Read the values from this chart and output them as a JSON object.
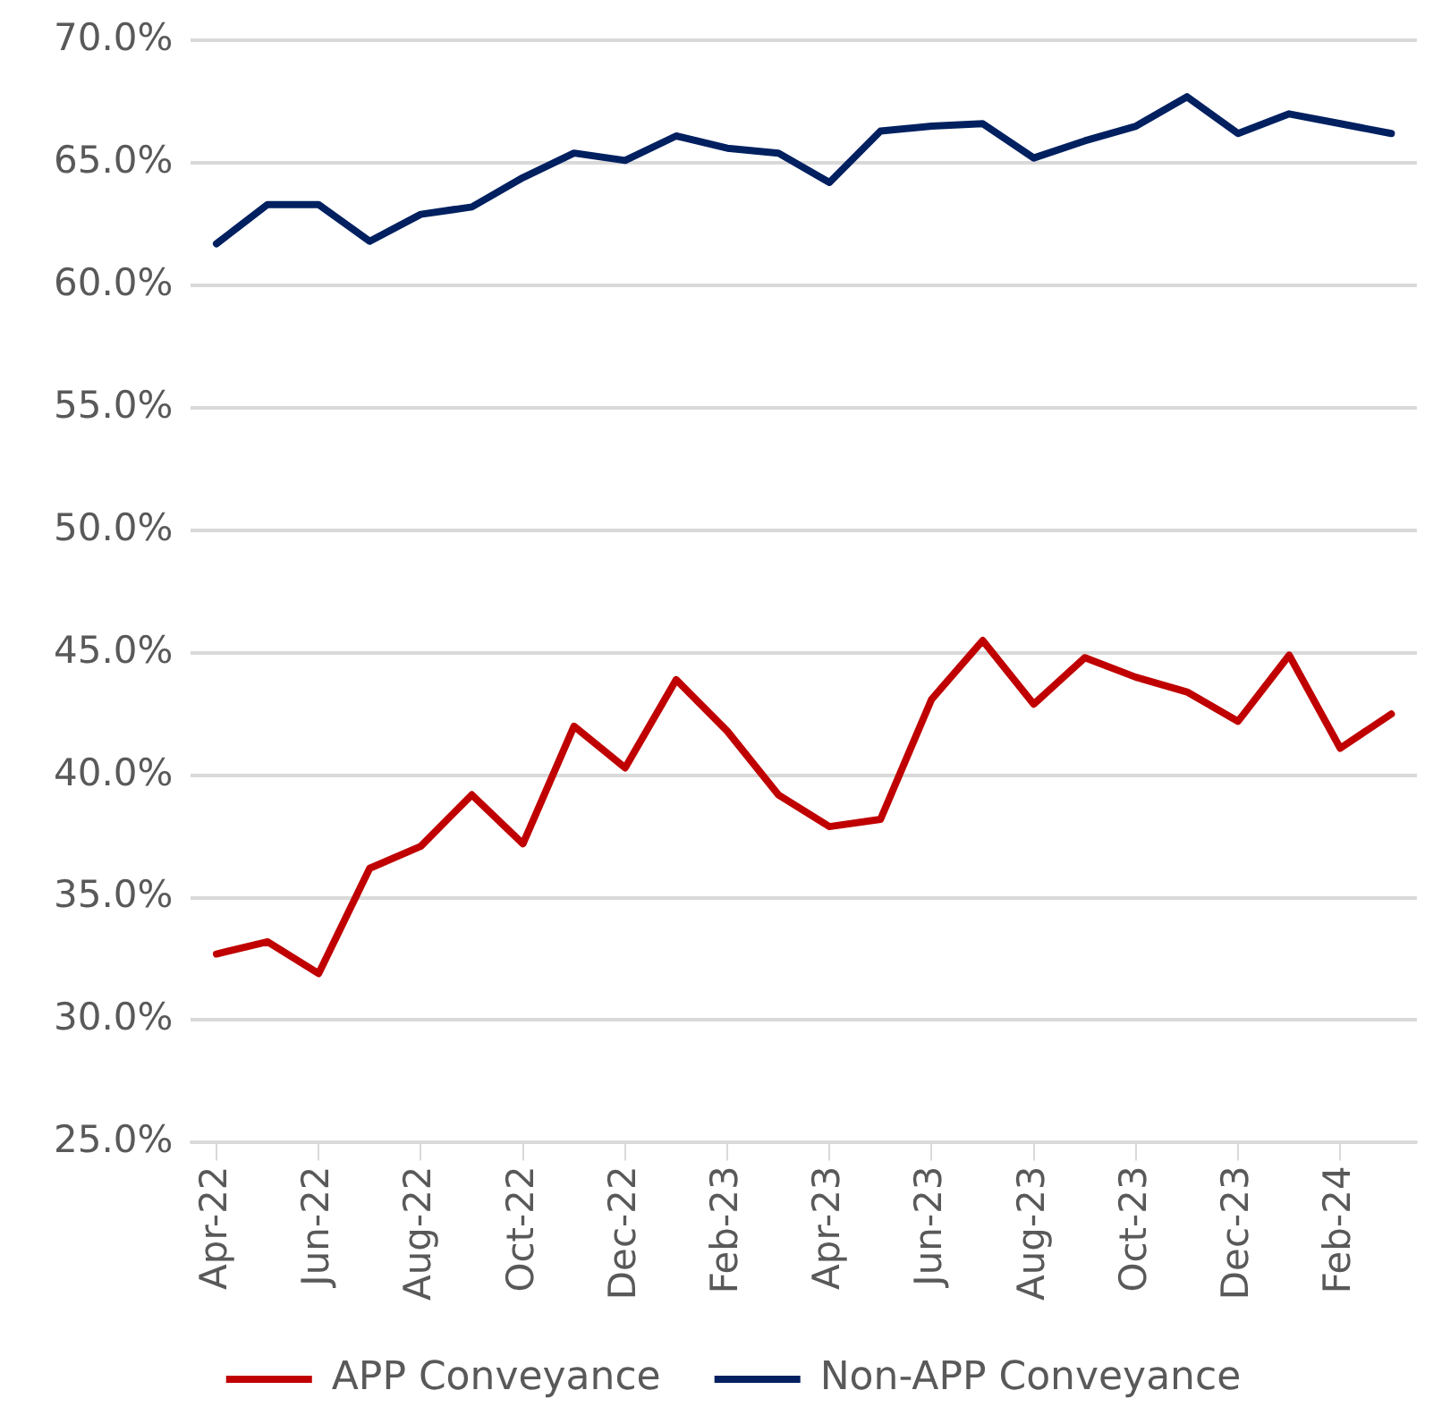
{
  "chart_data": {
    "type": "line",
    "categories": [
      "Apr-22",
      null,
      "Jun-22",
      null,
      "Aug-22",
      null,
      "Oct-22",
      null,
      "Dec-22",
      null,
      "Feb-23",
      null,
      "Apr-23",
      null,
      "Jun-23",
      null,
      "Aug-23",
      null,
      "Oct-23",
      null,
      "Dec-23",
      null,
      "Feb-24",
      null
    ],
    "series": [
      {
        "name": "APP Conveyance",
        "color": "#c00000",
        "values": [
          32.7,
          33.2,
          31.9,
          36.2,
          37.1,
          39.2,
          37.2,
          42.0,
          40.3,
          43.9,
          41.8,
          39.2,
          37.9,
          38.2,
          43.1,
          45.5,
          42.9,
          44.8,
          44.0,
          43.4,
          42.2,
          44.9,
          41.1,
          42.5
        ]
      },
      {
        "name": "Non-APP Conveyance",
        "color": "#002060",
        "values": [
          61.7,
          63.3,
          63.3,
          61.8,
          62.9,
          63.2,
          64.4,
          65.4,
          65.1,
          66.1,
          65.6,
          65.4,
          64.2,
          66.3,
          66.5,
          66.6,
          65.2,
          65.9,
          66.5,
          67.7,
          66.2,
          67.0,
          66.6,
          66.2
        ]
      }
    ],
    "ylim": [
      25,
      70
    ],
    "yticks": [
      {
        "value": 25,
        "label": "25.0%"
      },
      {
        "value": 30,
        "label": "30.0%"
      },
      {
        "value": 35,
        "label": "35.0%"
      },
      {
        "value": 40,
        "label": "40.0%"
      },
      {
        "value": 45,
        "label": "45.0%"
      },
      {
        "value": 50,
        "label": "50.0%"
      },
      {
        "value": 55,
        "label": "55.0%"
      },
      {
        "value": 60,
        "label": "60.0%"
      },
      {
        "value": 65,
        "label": "65.0%"
      },
      {
        "value": 70,
        "label": "70.0%"
      }
    ],
    "grid": "y",
    "legend": "bottom",
    "marker": "none",
    "line_style": "solid"
  }
}
